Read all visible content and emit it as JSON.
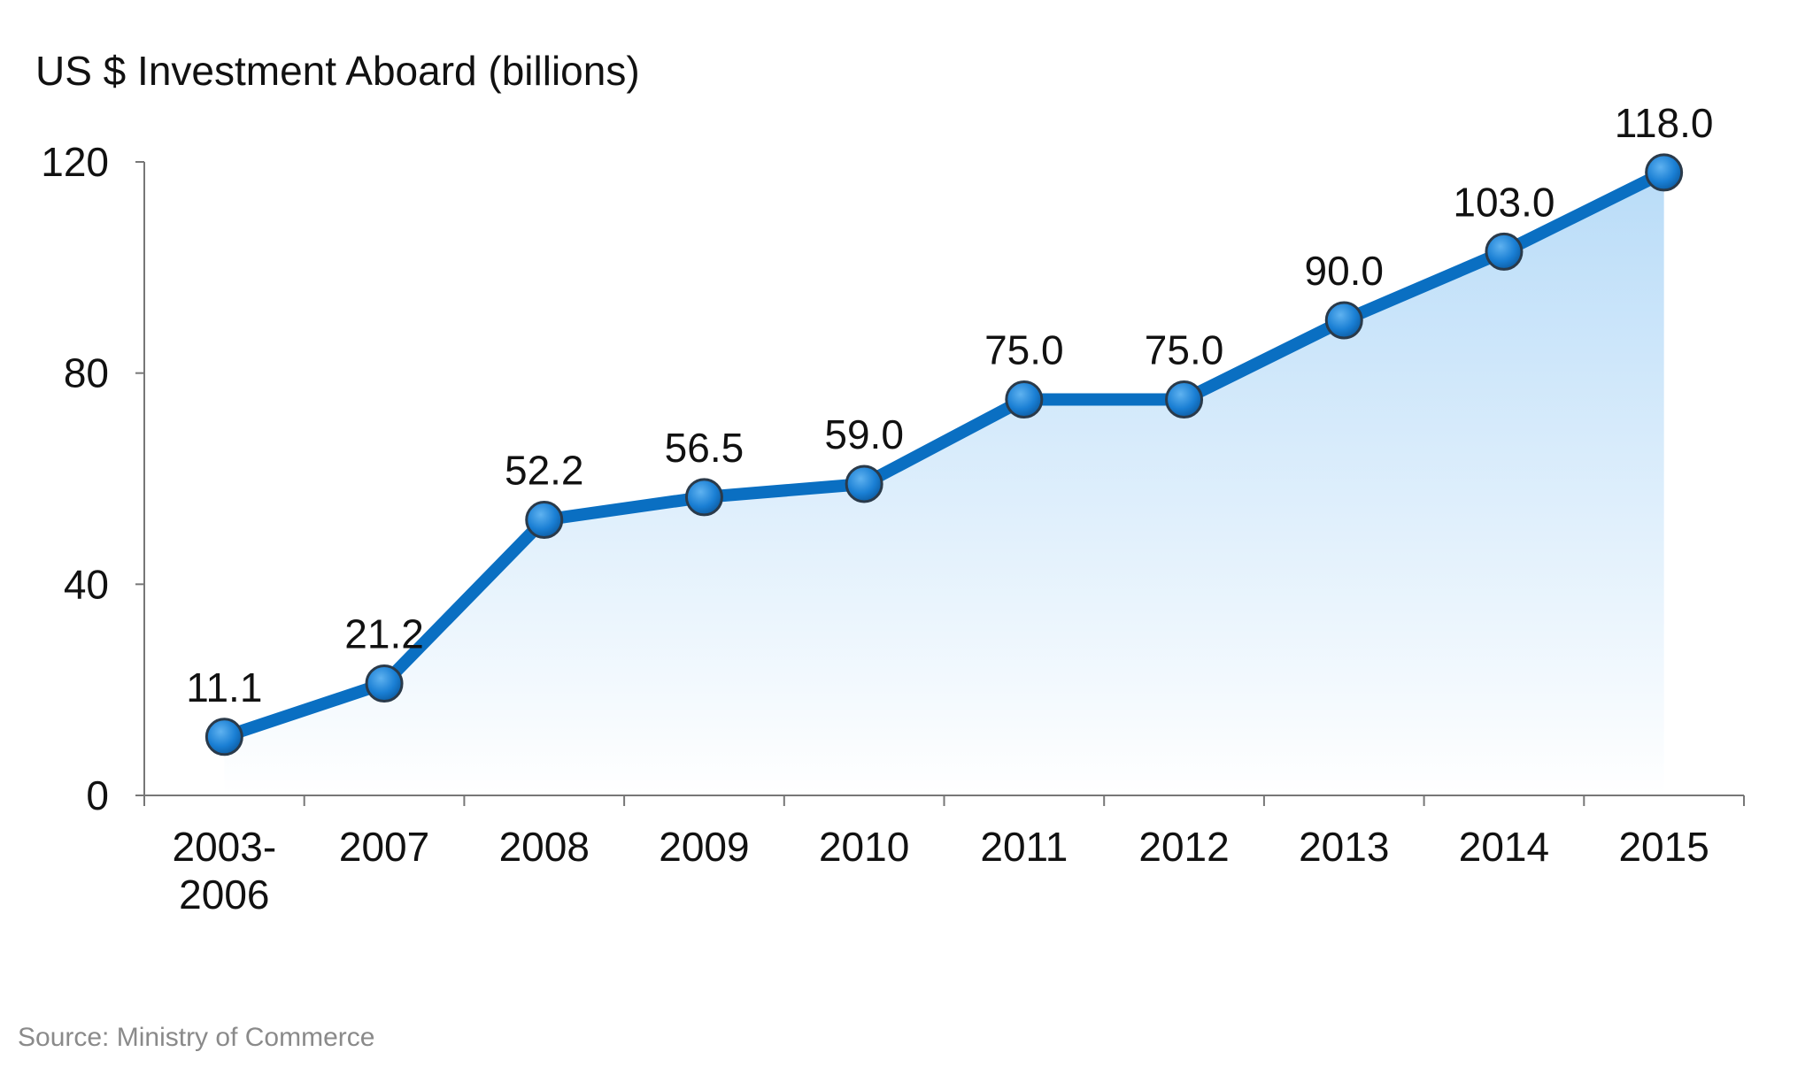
{
  "chart_data": {
    "type": "line",
    "title": "US $ Investment Aboard (billions)",
    "xlabel": "",
    "ylabel": "",
    "categories": [
      [
        "2003-",
        "2006"
      ],
      [
        "2007"
      ],
      [
        "2008"
      ],
      [
        "2009"
      ],
      [
        "2010"
      ],
      [
        "2011"
      ],
      [
        "2012"
      ],
      [
        "2013"
      ],
      [
        "2014"
      ],
      [
        "2015"
      ]
    ],
    "values": [
      11.1,
      21.2,
      52.2,
      56.5,
      59.0,
      75.0,
      75.0,
      90.0,
      103.0,
      118.0
    ],
    "data_labels": [
      "11.1",
      "21.2",
      "52.2",
      "56.5",
      "59.0",
      "75.0",
      "75.0",
      "90.0",
      "103.0",
      "118.0"
    ],
    "ylim": [
      0,
      120
    ],
    "yticks": [
      0,
      40,
      80,
      120
    ],
    "grid": false,
    "area_fill": true,
    "colors": {
      "line": "#0a6fc2",
      "marker": "#1a7fd4",
      "fill_top": "#b9dcf8",
      "fill_bottom": "#ffffff"
    }
  },
  "source": "Source: Ministry of Commerce"
}
